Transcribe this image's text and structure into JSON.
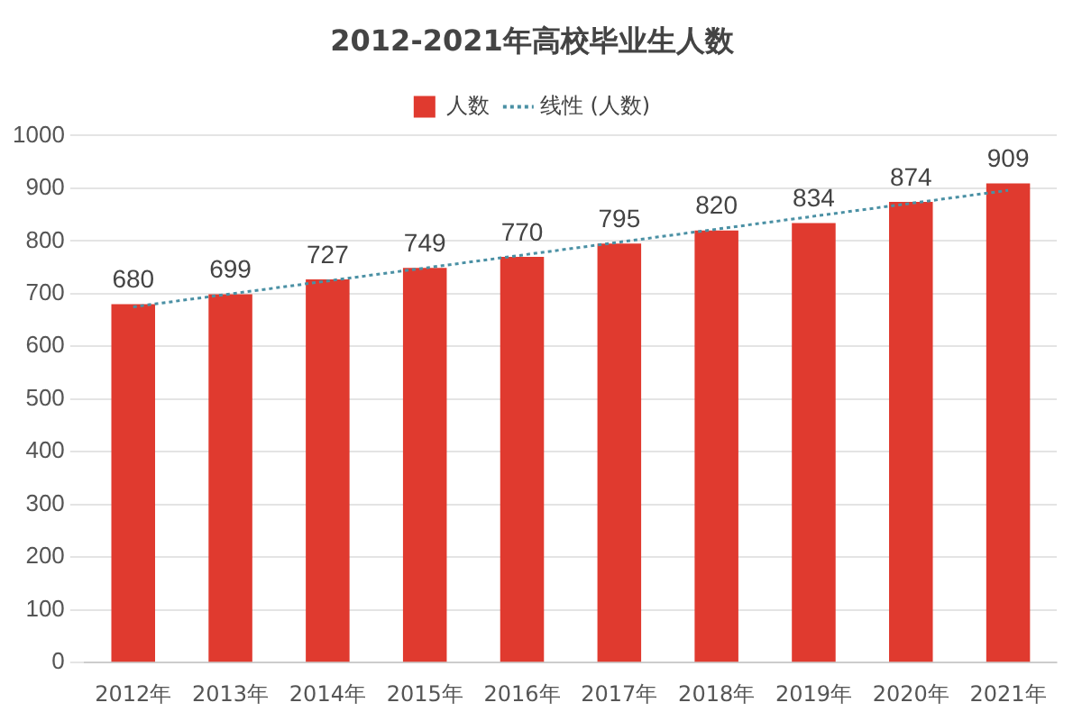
{
  "chart_data": {
    "type": "bar",
    "title": "2012-2021年高校毕业生人数",
    "categories": [
      "2012年",
      "2013年",
      "2014年",
      "2015年",
      "2016年",
      "2017年",
      "2018年",
      "2019年",
      "2020年",
      "2021年"
    ],
    "series": [
      {
        "name": "人数",
        "color": "#e03a2f",
        "values": [
          680,
          699,
          727,
          749,
          770,
          795,
          820,
          834,
          874,
          909
        ],
        "value_labels": [
          "680",
          "699",
          "727",
          "749",
          "770",
          "795",
          "820",
          "834",
          "874",
          "909"
        ]
      },
      {
        "name": "线性 (人数)",
        "type": "line",
        "color": "#4a90a4",
        "line_style": "dotted",
        "marker": "none",
        "x": [
          "2012年",
          "2021年"
        ],
        "values": [
          675,
          896
        ]
      }
    ],
    "ylim": [
      0,
      1000
    ],
    "yticks": [
      0,
      100,
      200,
      300,
      400,
      500,
      600,
      700,
      800,
      900,
      1000
    ],
    "grid": "y",
    "legend": "top"
  }
}
